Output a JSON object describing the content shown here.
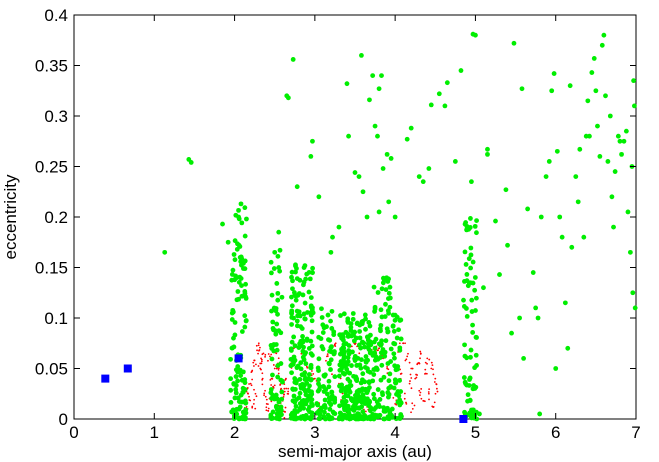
{
  "chart_data": {
    "type": "scatter",
    "title": "",
    "xlabel": "semi-major axis (au)",
    "ylabel": "eccentricity",
    "xlim": [
      0,
      7
    ],
    "ylim": [
      0,
      0.4
    ],
    "xticks": [
      0,
      1,
      2,
      3,
      4,
      5,
      6,
      7
    ],
    "xtick_labels": [
      "0",
      "1",
      "2",
      "3",
      "4",
      "5",
      "6",
      "7"
    ],
    "yticks": [
      0,
      0.05,
      0.1,
      0.15,
      0.2,
      0.25,
      0.3,
      0.35,
      0.4
    ],
    "ytick_labels": [
      "0",
      "0.05",
      "0.1",
      "0.15",
      "0.2",
      "0.25",
      "0.3",
      "0.35",
      "0.4"
    ],
    "grid": false,
    "legend": "none",
    "series": [
      {
        "marker": "tiny-dot",
        "color": "#ff0000",
        "description_note": "",
        "points": [
          [
            2.12,
            0.005
          ],
          [
            2.15,
            0.012
          ],
          [
            2.18,
            0.022
          ],
          [
            2.2,
            0.035
          ],
          [
            2.22,
            0.048
          ],
          [
            2.25,
            0.058
          ],
          [
            2.28,
            0.068
          ],
          [
            2.3,
            0.073
          ],
          [
            2.33,
            0.06
          ],
          [
            2.35,
            0.04
          ],
          [
            2.38,
            0.028
          ],
          [
            2.4,
            0.015
          ],
          [
            2.42,
            0.008
          ],
          [
            2.45,
            0.02
          ],
          [
            2.48,
            0.032
          ],
          [
            2.5,
            0.05
          ],
          [
            2.52,
            0.065
          ],
          [
            2.55,
            0.045
          ],
          [
            2.58,
            0.03
          ],
          [
            2.6,
            0.018
          ],
          [
            2.63,
            0.007
          ],
          [
            2.66,
            0.025
          ],
          [
            2.7,
            0.055
          ],
          [
            2.75,
            0.072
          ],
          [
            2.8,
            0.07
          ],
          [
            2.85,
            0.06
          ],
          [
            2.9,
            0.052
          ],
          [
            2.95,
            0.045
          ],
          [
            3.0,
            0.04
          ],
          [
            3.05,
            0.01
          ],
          [
            3.1,
            0.068
          ],
          [
            3.15,
            0.062
          ],
          [
            3.2,
            0.05
          ],
          [
            3.25,
            0.074
          ],
          [
            3.3,
            0.035
          ],
          [
            3.35,
            0.02
          ],
          [
            3.4,
            0.008
          ],
          [
            3.45,
            0.066
          ],
          [
            3.5,
            0.074
          ],
          [
            3.55,
            0.07
          ],
          [
            3.6,
            0.004
          ],
          [
            3.65,
            0.012
          ],
          [
            3.7,
            0.072
          ],
          [
            3.75,
            0.068
          ],
          [
            3.8,
            0.07
          ],
          [
            3.85,
            0.06
          ],
          [
            3.9,
            0.05
          ],
          [
            3.95,
            0.03
          ],
          [
            4.0,
            0.015
          ],
          [
            4.05,
            0.07
          ],
          [
            4.1,
            0.075
          ],
          [
            4.15,
            0.062
          ],
          [
            4.2,
            0.05
          ],
          [
            4.25,
            0.04
          ],
          [
            4.3,
            0.028
          ],
          [
            4.35,
            0.018
          ],
          [
            4.4,
            0.06
          ],
          [
            4.45,
            0.05
          ],
          [
            4.5,
            0.04
          ],
          [
            4.52,
            0.03
          ],
          [
            2.16,
            0.03
          ],
          [
            2.24,
            0.015
          ],
          [
            2.32,
            0.05
          ],
          [
            2.44,
            0.062
          ],
          [
            2.56,
            0.01
          ],
          [
            2.64,
            0.04
          ],
          [
            4.12,
            0.02
          ],
          [
            4.22,
            0.01
          ],
          [
            4.32,
            0.065
          ],
          [
            4.42,
            0.025
          ],
          [
            4.48,
            0.012
          ],
          [
            4.38,
            0.045
          ],
          [
            4.28,
            0.055
          ],
          [
            4.18,
            0.035
          ],
          [
            4.08,
            0.045
          ],
          [
            2.26,
            0.025
          ],
          [
            2.36,
            0.065
          ],
          [
            2.46,
            0.04
          ],
          [
            2.54,
            0.055
          ],
          [
            2.62,
            0.03
          ]
        ]
      },
      {
        "marker": "dot",
        "color": "#00ee00",
        "description_note": "",
        "points": [
          [
            1.13,
            0.165
          ],
          [
            1.43,
            0.257
          ],
          [
            1.46,
            0.254
          ],
          [
            1.85,
            0.193
          ],
          [
            1.92,
            0.175
          ],
          [
            2.08,
            0.213
          ],
          [
            2.05,
            0.2
          ],
          [
            2.07,
            0.16
          ],
          [
            2.03,
            0.14
          ],
          [
            2.65,
            0.32
          ],
          [
            2.67,
            0.318
          ],
          [
            2.73,
            0.356
          ],
          [
            2.78,
            0.23
          ],
          [
            2.55,
            0.185
          ],
          [
            2.5,
            0.165
          ],
          [
            2.95,
            0.26
          ],
          [
            2.97,
            0.275
          ],
          [
            3.05,
            0.22
          ],
          [
            3.2,
            0.165
          ],
          [
            3.22,
            0.18
          ],
          [
            3.3,
            0.19
          ],
          [
            3.4,
            0.332
          ],
          [
            3.42,
            0.28
          ],
          [
            3.5,
            0.244
          ],
          [
            3.55,
            0.24
          ],
          [
            3.6,
            0.225
          ],
          [
            3.65,
            0.2
          ],
          [
            3.68,
            0.316
          ],
          [
            3.72,
            0.34
          ],
          [
            3.8,
            0.327
          ],
          [
            3.83,
            0.34
          ],
          [
            3.9,
            0.262
          ],
          [
            3.95,
            0.258
          ],
          [
            3.85,
            0.248
          ],
          [
            3.92,
            0.215
          ],
          [
            4.0,
            0.2
          ],
          [
            3.75,
            0.29
          ],
          [
            3.78,
            0.28
          ],
          [
            3.58,
            0.36
          ],
          [
            3.8,
            0.205
          ],
          [
            4.15,
            0.277
          ],
          [
            4.2,
            0.288
          ],
          [
            4.3,
            0.24
          ],
          [
            4.35,
            0.235
          ],
          [
            4.42,
            0.248
          ],
          [
            4.45,
            0.311
          ],
          [
            4.55,
            0.322
          ],
          [
            4.65,
            0.333
          ],
          [
            4.62,
            0.31
          ],
          [
            4.75,
            0.255
          ],
          [
            4.82,
            0.345
          ],
          [
            4.95,
            0.235
          ],
          [
            4.97,
            0.381
          ],
          [
            5.0,
            0.38
          ],
          [
            5.15,
            0.267
          ],
          [
            5.15,
            0.262
          ],
          [
            5.25,
            0.196
          ],
          [
            5.3,
            0.143
          ],
          [
            5.38,
            0.227
          ],
          [
            5.4,
            0.172
          ],
          [
            5.48,
            0.372
          ],
          [
            5.58,
            0.327
          ],
          [
            5.65,
            0.208
          ],
          [
            5.72,
            0.145
          ],
          [
            5.75,
            0.11
          ],
          [
            5.78,
            0.1
          ],
          [
            5.82,
            0.2
          ],
          [
            5.88,
            0.24
          ],
          [
            5.92,
            0.255
          ],
          [
            5.95,
            0.325
          ],
          [
            5.98,
            0.342
          ],
          [
            6.02,
            0.265
          ],
          [
            6.05,
            0.2
          ],
          [
            6.12,
            0.115
          ],
          [
            6.15,
            0.07
          ],
          [
            6.18,
            0.33
          ],
          [
            6.2,
            0.17
          ],
          [
            6.25,
            0.24
          ],
          [
            6.3,
            0.267
          ],
          [
            6.35,
            0.18
          ],
          [
            6.38,
            0.28
          ],
          [
            6.4,
            0.315
          ],
          [
            6.45,
            0.343
          ],
          [
            6.48,
            0.357
          ],
          [
            6.52,
            0.29
          ],
          [
            6.55,
            0.26
          ],
          [
            6.58,
            0.37
          ],
          [
            6.6,
            0.38
          ],
          [
            6.62,
            0.32
          ],
          [
            6.65,
            0.255
          ],
          [
            6.7,
            0.22
          ],
          [
            6.72,
            0.19
          ],
          [
            6.78,
            0.28
          ],
          [
            6.8,
            0.275
          ],
          [
            6.82,
            0.262
          ],
          [
            6.85,
            0.275
          ],
          [
            6.88,
            0.285
          ],
          [
            6.9,
            0.205
          ],
          [
            6.93,
            0.165
          ],
          [
            6.95,
            0.25
          ],
          [
            6.97,
            0.335
          ],
          [
            6.98,
            0.31
          ],
          [
            6.99,
            0.11
          ],
          [
            6.96,
            0.125
          ],
          [
            5.45,
            0.085
          ],
          [
            5.55,
            0.1
          ],
          [
            5.6,
            0.06
          ],
          [
            6.0,
            0.05
          ],
          [
            5.8,
            0.005
          ],
          [
            5.05,
            0.005
          ],
          [
            5.1,
            0.13
          ],
          [
            6.08,
            0.18
          ],
          [
            6.28,
            0.215
          ],
          [
            6.42,
            0.28
          ],
          [
            6.5,
            0.325
          ],
          [
            6.68,
            0.3
          ],
          [
            6.74,
            0.245
          ]
        ],
        "clusters": [
          {
            "x": [
              1.95,
              2.15
            ],
            "y": [
              0.0,
              0.21
            ],
            "count": 120
          },
          {
            "x": [
              2.45,
              2.6
            ],
            "y": [
              0.0,
              0.18
            ],
            "count": 70
          },
          {
            "x": [
              2.7,
              2.98
            ],
            "y": [
              0.0,
              0.16
            ],
            "count": 200
          },
          {
            "x": [
              3.02,
              3.25
            ],
            "y": [
              0.0,
              0.11
            ],
            "count": 90
          },
          {
            "x": [
              3.3,
              3.7
            ],
            "y": [
              0.0,
              0.105
            ],
            "count": 260
          },
          {
            "x": [
              3.72,
              3.98
            ],
            "y": [
              0.0,
              0.14
            ],
            "count": 110
          },
          {
            "x": [
              3.98,
              4.08
            ],
            "y": [
              0.0,
              0.11
            ],
            "count": 40
          },
          {
            "x": [
              4.85,
              5.02
            ],
            "y": [
              0.0,
              0.2
            ],
            "count": 80
          }
        ]
      },
      {
        "marker": "square",
        "color": "#0000ff",
        "description_note": "",
        "points": [
          [
            0.39,
            0.04
          ],
          [
            0.67,
            0.05
          ],
          [
            2.05,
            0.06
          ],
          [
            4.85,
            0.0
          ]
        ]
      }
    ]
  }
}
